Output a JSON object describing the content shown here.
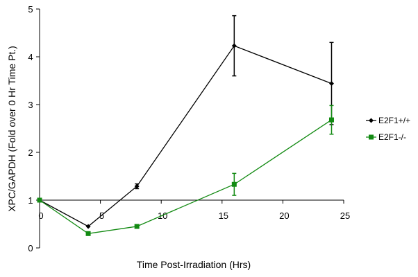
{
  "chart_data": {
    "type": "line",
    "title": "",
    "xlabel": "Time Post-Irradiation (Hrs)",
    "ylabel": "XPC/GAPDH (Fold over 0 Hr Time Pt.)",
    "xlim": [
      0,
      25
    ],
    "ylim": [
      0,
      5
    ],
    "x_ticks": [
      "0",
      "5",
      "10",
      "15",
      "20",
      "25"
    ],
    "y_ticks": [
      "0",
      "1",
      "2",
      "3",
      "4",
      "5"
    ],
    "x_axis_crosses_y_at": 1,
    "grid": false,
    "legend_position": "right",
    "series": [
      {
        "name": "E2F1+/+",
        "color": "#000000",
        "marker": "diamond",
        "x": [
          0,
          4,
          8,
          16,
          24
        ],
        "y": [
          1.0,
          0.45,
          1.29,
          4.23,
          3.44
        ],
        "error": [
          0,
          0,
          0.05,
          0.63,
          0.86
        ]
      },
      {
        "name": "E2F1-/-",
        "color": "#128a12",
        "marker": "square",
        "x": [
          0,
          4,
          8,
          16,
          24
        ],
        "y": [
          1.0,
          0.3,
          0.45,
          1.33,
          2.68
        ],
        "error": [
          0,
          0,
          0,
          0.23,
          0.3
        ]
      }
    ]
  }
}
